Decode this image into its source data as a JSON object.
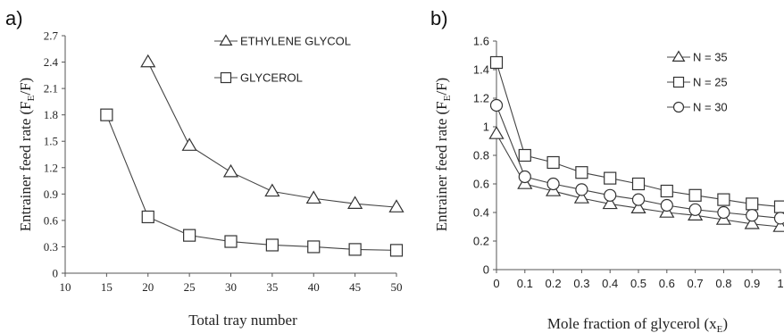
{
  "chart_data": [
    {
      "type": "line",
      "panel_label": "a)",
      "xlabel": "Total tray number",
      "ylabel_main": "Entrainer  feed rate (F",
      "ylabel_sub": "E",
      "ylabel_tail": "/F)",
      "xlim": [
        10,
        50
      ],
      "ylim": [
        0,
        2.7
      ],
      "xticks": [
        "10",
        "15",
        "20",
        "25",
        "30",
        "35",
        "40",
        "45",
        "50"
      ],
      "yticks": [
        "0",
        "0.3",
        "0.6",
        "0.9",
        "1.2",
        "1.5",
        "1.8",
        "2.1",
        "2.4",
        "2.7"
      ],
      "series": [
        {
          "name": "ETHYLENE GLYCOL",
          "marker": "triangle",
          "x": [
            20,
            25,
            30,
            35,
            40,
            45,
            50
          ],
          "y": [
            2.4,
            1.45,
            1.15,
            0.93,
            0.85,
            0.79,
            0.75
          ]
        },
        {
          "name": "GLYCEROL",
          "marker": "square",
          "x": [
            15,
            20,
            25,
            30,
            35,
            40,
            45,
            50
          ],
          "y": [
            1.8,
            0.64,
            0.43,
            0.36,
            0.32,
            0.3,
            0.27,
            0.26
          ]
        }
      ],
      "legend_position": "top-right",
      "grid": false
    },
    {
      "type": "line",
      "panel_label": "b)",
      "xlabel_main": "Mole  fraction  of glycerol (x",
      "xlabel_sub": "E",
      "xlabel_tail": ")",
      "ylabel_main": "Entrainer  feed rate (F",
      "ylabel_sub": "E",
      "ylabel_tail": "/F)",
      "xlim": [
        0,
        1
      ],
      "ylim": [
        0,
        1.6
      ],
      "xticks": [
        "0",
        "0.1",
        "0.2",
        "0.3",
        "0.4",
        "0.5",
        "0.6",
        "0.7",
        "0.8",
        "0.9",
        "1"
      ],
      "yticks": [
        "0",
        "0.2",
        "0.4",
        "0.6",
        "0.8",
        "1",
        "1.2",
        "1.4",
        "1.6"
      ],
      "series": [
        {
          "name": "N = 35",
          "marker": "triangle",
          "x": [
            0,
            0.1,
            0.2,
            0.3,
            0.4,
            0.5,
            0.6,
            0.7,
            0.8,
            0.9,
            1
          ],
          "y": [
            0.95,
            0.6,
            0.55,
            0.5,
            0.46,
            0.43,
            0.4,
            0.38,
            0.35,
            0.32,
            0.3
          ]
        },
        {
          "name": "N = 25",
          "marker": "square",
          "x": [
            0,
            0.1,
            0.2,
            0.3,
            0.4,
            0.5,
            0.6,
            0.7,
            0.8,
            0.9,
            1
          ],
          "y": [
            1.45,
            0.8,
            0.75,
            0.68,
            0.64,
            0.6,
            0.55,
            0.52,
            0.49,
            0.46,
            0.44
          ]
        },
        {
          "name": "N = 30",
          "marker": "circle",
          "x": [
            0,
            0.1,
            0.2,
            0.3,
            0.4,
            0.5,
            0.6,
            0.7,
            0.8,
            0.9,
            1
          ],
          "y": [
            1.15,
            0.65,
            0.6,
            0.56,
            0.52,
            0.49,
            0.45,
            0.42,
            0.4,
            0.38,
            0.36
          ]
        }
      ],
      "legend_position": "top-right",
      "grid": false
    }
  ]
}
